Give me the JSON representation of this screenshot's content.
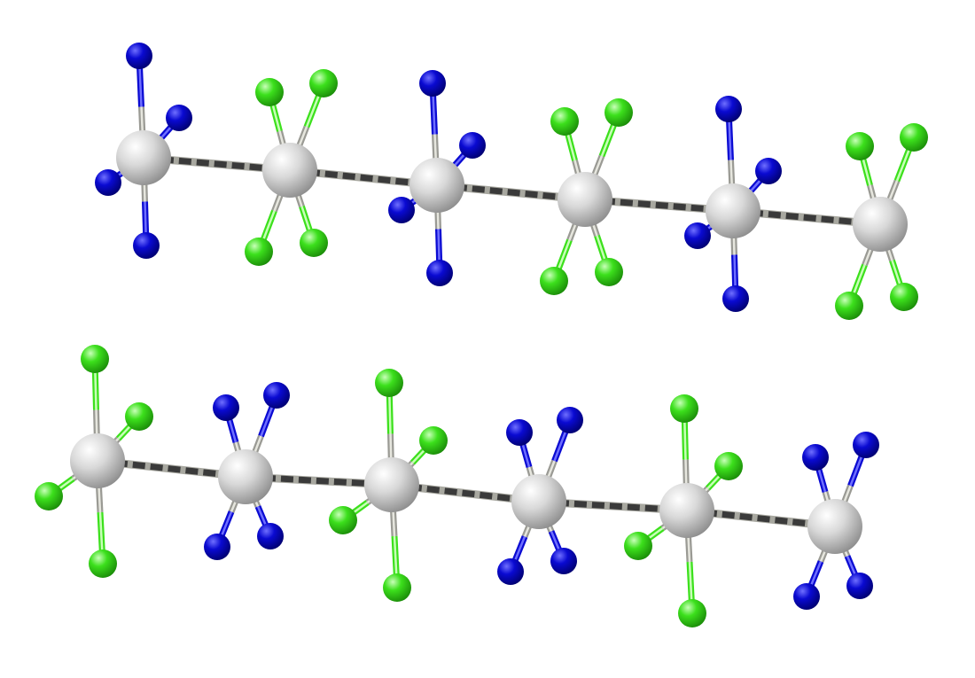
{
  "colors": {
    "metal": "#d8d8d8",
    "metal_light": "#ffffff",
    "metal_dark": "#8d8d8d",
    "blue_ligand": "#0a0ad2",
    "blue_light": "#6f6fff",
    "blue_dark": "#00006e",
    "green_ligand": "#3ce01c",
    "green_light": "#c8ffb8",
    "green_dark": "#1a8a08",
    "link_dark": "#3a3a3a",
    "link_light": "#a8a8a0",
    "background": "#ffffff"
  },
  "chains": [
    {
      "name": "upper-chain",
      "units": [
        {
          "ligand": "blue"
        },
        {
          "ligand": "green"
        },
        {
          "ligand": "blue"
        },
        {
          "ligand": "green"
        },
        {
          "ligand": "blue"
        },
        {
          "ligand": "green"
        }
      ]
    },
    {
      "name": "lower-chain",
      "units": [
        {
          "ligand": "green"
        },
        {
          "ligand": "blue"
        },
        {
          "ligand": "green"
        },
        {
          "ligand": "blue"
        },
        {
          "ligand": "green"
        },
        {
          "ligand": "blue"
        }
      ]
    }
  ]
}
